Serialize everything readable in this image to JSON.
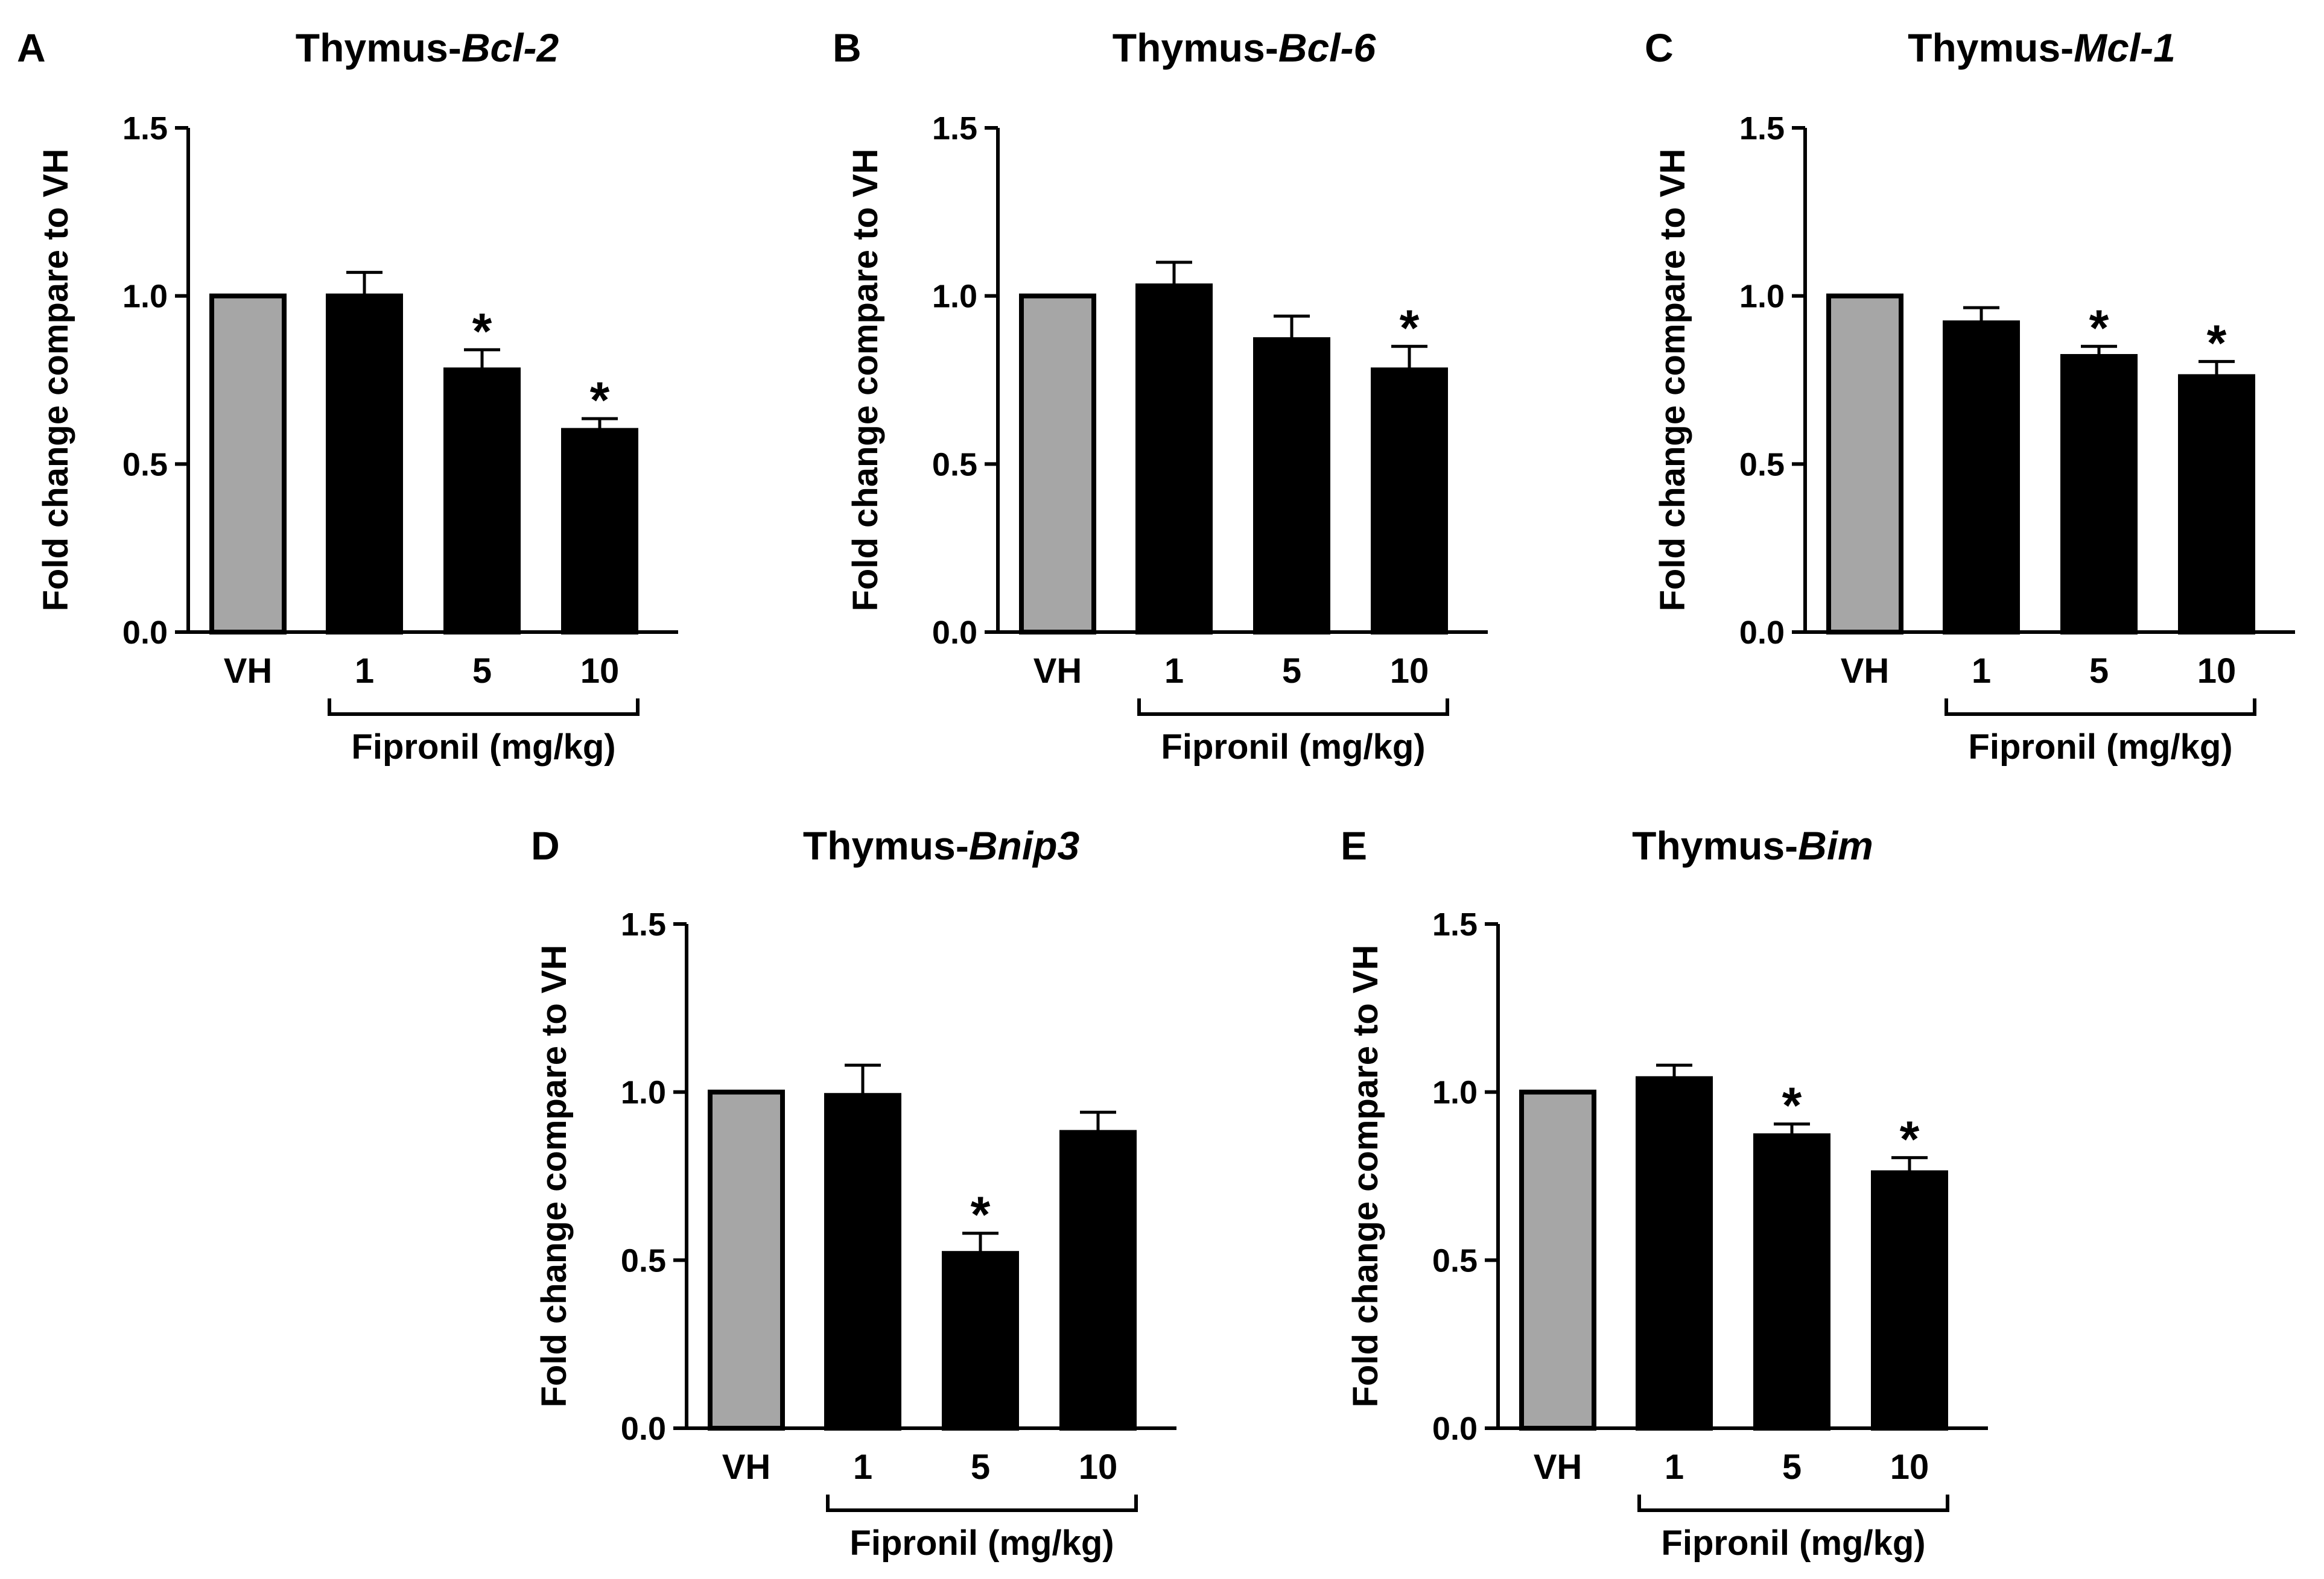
{
  "figure": {
    "colors": {
      "control_bar": "#a6a6a6",
      "treatment_bar": "#000000",
      "outline": "#000000"
    }
  },
  "chart_data": [
    {
      "panel": "A",
      "type": "bar",
      "title_prefix": "Thymus-",
      "title_gene": "Bcl-2",
      "ylabel": "Fold change compare to VH",
      "xlabel": "Fipronil (mg/kg)",
      "categories": [
        "VH",
        "1",
        "5",
        "10"
      ],
      "values": [
        1.0,
        1.0,
        0.78,
        0.6
      ],
      "errors": [
        0.0,
        0.07,
        0.06,
        0.035
      ],
      "significance": [
        "",
        "",
        "*",
        "*"
      ],
      "yticks": [
        "0.0",
        "0.5",
        "1.0",
        "1.5"
      ],
      "ylim": [
        0,
        1.5
      ]
    },
    {
      "panel": "B",
      "type": "bar",
      "title_prefix": "Thymus-",
      "title_gene": "Bcl-6",
      "ylabel": "Fold change compare to VH",
      "xlabel": "Fipronil (mg/kg)",
      "categories": [
        "VH",
        "1",
        "5",
        "10"
      ],
      "values": [
        1.0,
        1.03,
        0.87,
        0.78
      ],
      "errors": [
        0.0,
        0.07,
        0.07,
        0.07
      ],
      "significance": [
        "",
        "",
        "",
        "*"
      ],
      "yticks": [
        "0.0",
        "0.5",
        "1.0",
        "1.5"
      ],
      "ylim": [
        0,
        1.5
      ]
    },
    {
      "panel": "C",
      "type": "bar",
      "title_prefix": "Thymus-",
      "title_gene": "Mcl-1",
      "ylabel": "Fold change compare to VH",
      "xlabel": "Fipronil (mg/kg)",
      "categories": [
        "VH",
        "1",
        "5",
        "10"
      ],
      "values": [
        1.0,
        0.92,
        0.82,
        0.76
      ],
      "errors": [
        0.0,
        0.045,
        0.03,
        0.045
      ],
      "significance": [
        "",
        "",
        "*",
        "*"
      ],
      "yticks": [
        "0.0",
        "0.5",
        "1.0",
        "1.5"
      ],
      "ylim": [
        0,
        1.5
      ]
    },
    {
      "panel": "D",
      "type": "bar",
      "title_prefix": "Thymus-",
      "title_gene": "Bnip3",
      "ylabel": "Fold change compare to VH",
      "xlabel": "Fipronil (mg/kg)",
      "categories": [
        "VH",
        "1",
        "5",
        "10"
      ],
      "values": [
        1.0,
        0.99,
        0.52,
        0.88
      ],
      "errors": [
        0.0,
        0.09,
        0.06,
        0.06
      ],
      "significance": [
        "",
        "",
        "*",
        ""
      ],
      "yticks": [
        "0.0",
        "0.5",
        "1.0",
        "1.5"
      ],
      "ylim": [
        0,
        1.5
      ]
    },
    {
      "panel": "E",
      "type": "bar",
      "title_prefix": "Thymus-",
      "title_gene": "Bim",
      "ylabel": "Fold change compare to VH",
      "xlabel": "Fipronil (mg/kg)",
      "categories": [
        "VH",
        "1",
        "5",
        "10"
      ],
      "values": [
        1.0,
        1.04,
        0.87,
        0.76
      ],
      "errors": [
        0.0,
        0.04,
        0.035,
        0.045
      ],
      "significance": [
        "",
        "",
        "*",
        "*"
      ],
      "yticks": [
        "0.0",
        "0.5",
        "1.0",
        "1.5"
      ],
      "ylim": [
        0,
        1.5
      ]
    }
  ]
}
